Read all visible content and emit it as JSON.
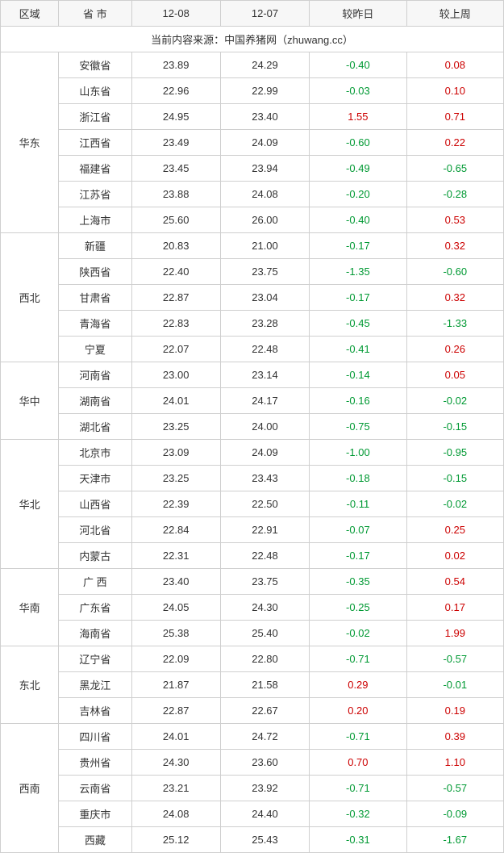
{
  "header": {
    "region": "区域",
    "province": "省 市",
    "date1": "12-08",
    "date2": "12-07",
    "vs_yesterday": "较昨日",
    "vs_lastweek": "较上周"
  },
  "source_text": "当前内容来源：中国养猪网（zhuwang.cc）",
  "colors": {
    "up": "#cc0000",
    "down": "#009933",
    "text": "#333333",
    "border": "#cfcfcf",
    "header_bg": "#f7f7f7"
  },
  "regions": [
    {
      "name": "华东",
      "rows": [
        {
          "prov": "安徽省",
          "d1": "23.89",
          "d2": "24.29",
          "diff1": "-0.40",
          "c1": "down",
          "diff2": "0.08",
          "c2": "up"
        },
        {
          "prov": "山东省",
          "d1": "22.96",
          "d2": "22.99",
          "diff1": "-0.03",
          "c1": "down",
          "diff2": "0.10",
          "c2": "up"
        },
        {
          "prov": "浙江省",
          "d1": "24.95",
          "d2": "23.40",
          "diff1": "1.55",
          "c1": "up",
          "diff2": "0.71",
          "c2": "up"
        },
        {
          "prov": "江西省",
          "d1": "23.49",
          "d2": "24.09",
          "diff1": "-0.60",
          "c1": "down",
          "diff2": "0.22",
          "c2": "up"
        },
        {
          "prov": "福建省",
          "d1": "23.45",
          "d2": "23.94",
          "diff1": "-0.49",
          "c1": "down",
          "diff2": "-0.65",
          "c2": "down"
        },
        {
          "prov": "江苏省",
          "d1": "23.88",
          "d2": "24.08",
          "diff1": "-0.20",
          "c1": "down",
          "diff2": "-0.28",
          "c2": "down"
        },
        {
          "prov": "上海市",
          "d1": "25.60",
          "d2": "26.00",
          "diff1": "-0.40",
          "c1": "down",
          "diff2": "0.53",
          "c2": "up"
        }
      ]
    },
    {
      "name": "西北",
      "rows": [
        {
          "prov": "新疆",
          "d1": "20.83",
          "d2": "21.00",
          "diff1": "-0.17",
          "c1": "down",
          "diff2": "0.32",
          "c2": "up"
        },
        {
          "prov": "陕西省",
          "d1": "22.40",
          "d2": "23.75",
          "diff1": "-1.35",
          "c1": "down",
          "diff2": "-0.60",
          "c2": "down"
        },
        {
          "prov": "甘肃省",
          "d1": "22.87",
          "d2": "23.04",
          "diff1": "-0.17",
          "c1": "down",
          "diff2": "0.32",
          "c2": "up"
        },
        {
          "prov": "青海省",
          "d1": "22.83",
          "d2": "23.28",
          "diff1": "-0.45",
          "c1": "down",
          "diff2": "-1.33",
          "c2": "down"
        },
        {
          "prov": "宁夏",
          "d1": "22.07",
          "d2": "22.48",
          "diff1": "-0.41",
          "c1": "down",
          "diff2": "0.26",
          "c2": "up"
        }
      ]
    },
    {
      "name": "华中",
      "rows": [
        {
          "prov": "河南省",
          "d1": "23.00",
          "d2": "23.14",
          "diff1": "-0.14",
          "c1": "down",
          "diff2": "0.05",
          "c2": "up"
        },
        {
          "prov": "湖南省",
          "d1": "24.01",
          "d2": "24.17",
          "diff1": "-0.16",
          "c1": "down",
          "diff2": "-0.02",
          "c2": "down"
        },
        {
          "prov": "湖北省",
          "d1": "23.25",
          "d2": "24.00",
          "diff1": "-0.75",
          "c1": "down",
          "diff2": "-0.15",
          "c2": "down"
        }
      ]
    },
    {
      "name": "华北",
      "rows": [
        {
          "prov": "北京市",
          "d1": "23.09",
          "d2": "24.09",
          "diff1": "-1.00",
          "c1": "down",
          "diff2": "-0.95",
          "c2": "down"
        },
        {
          "prov": "天津市",
          "d1": "23.25",
          "d2": "23.43",
          "diff1": "-0.18",
          "c1": "down",
          "diff2": "-0.15",
          "c2": "down"
        },
        {
          "prov": "山西省",
          "d1": "22.39",
          "d2": "22.50",
          "diff1": "-0.11",
          "c1": "down",
          "diff2": "-0.02",
          "c2": "down"
        },
        {
          "prov": "河北省",
          "d1": "22.84",
          "d2": "22.91",
          "diff1": "-0.07",
          "c1": "down",
          "diff2": "0.25",
          "c2": "up"
        },
        {
          "prov": "内蒙古",
          "d1": "22.31",
          "d2": "22.48",
          "diff1": "-0.17",
          "c1": "down",
          "diff2": "0.02",
          "c2": "up"
        }
      ]
    },
    {
      "name": "华南",
      "rows": [
        {
          "prov": "广 西",
          "d1": "23.40",
          "d2": "23.75",
          "diff1": "-0.35",
          "c1": "down",
          "diff2": "0.54",
          "c2": "up"
        },
        {
          "prov": "广东省",
          "d1": "24.05",
          "d2": "24.30",
          "diff1": "-0.25",
          "c1": "down",
          "diff2": "0.17",
          "c2": "up"
        },
        {
          "prov": "海南省",
          "d1": "25.38",
          "d2": "25.40",
          "diff1": "-0.02",
          "c1": "down",
          "diff2": "1.99",
          "c2": "up"
        }
      ]
    },
    {
      "name": "东北",
      "rows": [
        {
          "prov": "辽宁省",
          "d1": "22.09",
          "d2": "22.80",
          "diff1": "-0.71",
          "c1": "down",
          "diff2": "-0.57",
          "c2": "down"
        },
        {
          "prov": "黑龙江",
          "d1": "21.87",
          "d2": "21.58",
          "diff1": "0.29",
          "c1": "up",
          "diff2": "-0.01",
          "c2": "down"
        },
        {
          "prov": "吉林省",
          "d1": "22.87",
          "d2": "22.67",
          "diff1": "0.20",
          "c1": "up",
          "diff2": "0.19",
          "c2": "up"
        }
      ]
    },
    {
      "name": "西南",
      "rows": [
        {
          "prov": "四川省",
          "d1": "24.01",
          "d2": "24.72",
          "diff1": "-0.71",
          "c1": "down",
          "diff2": "0.39",
          "c2": "up"
        },
        {
          "prov": "贵州省",
          "d1": "24.30",
          "d2": "23.60",
          "diff1": "0.70",
          "c1": "up",
          "diff2": "1.10",
          "c2": "up"
        },
        {
          "prov": "云南省",
          "d1": "23.21",
          "d2": "23.92",
          "diff1": "-0.71",
          "c1": "down",
          "diff2": "-0.57",
          "c2": "down"
        },
        {
          "prov": "重庆市",
          "d1": "24.08",
          "d2": "24.40",
          "diff1": "-0.32",
          "c1": "down",
          "diff2": "-0.09",
          "c2": "down"
        },
        {
          "prov": "西藏",
          "d1": "25.12",
          "d2": "25.43",
          "diff1": "-0.31",
          "c1": "down",
          "diff2": "-1.67",
          "c2": "down"
        }
      ]
    }
  ]
}
